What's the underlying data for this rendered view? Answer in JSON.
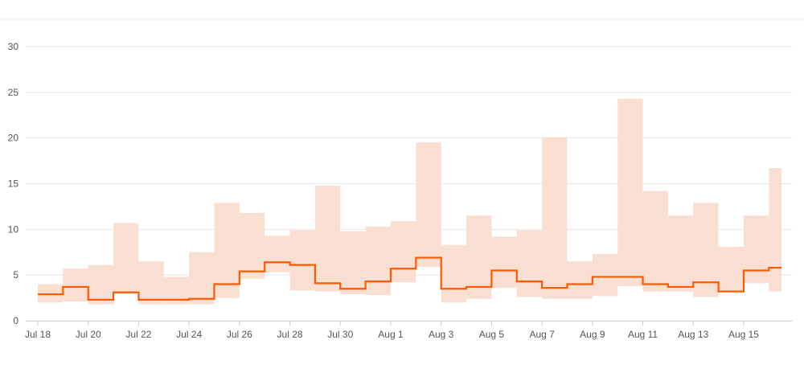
{
  "chart_data": {
    "type": "area",
    "title": "",
    "xlabel": "",
    "ylabel": "",
    "ylim": [
      0,
      30
    ],
    "yticks": [
      0,
      5,
      10,
      15,
      20,
      25,
      30
    ],
    "grid": true,
    "legend": "none",
    "colors": {
      "line": "#ff5a00",
      "band": "#f9dfd1",
      "grid": "#e6e6e6",
      "axis": "#cccccc",
      "text": "#555555"
    },
    "x_tick_labels": [
      "Jul 18",
      "Jul 20",
      "Jul 22",
      "Jul 24",
      "Jul 26",
      "Jul 28",
      "Jul 30",
      "Aug 1",
      "Aug 3",
      "Aug 5",
      "Aug 7",
      "Aug 9",
      "Aug 11",
      "Aug 13",
      "Aug 15"
    ],
    "x": [
      "Jul 18",
      "Jul 19",
      "Jul 20",
      "Jul 21",
      "Jul 22",
      "Jul 23",
      "Jul 24",
      "Jul 25",
      "Jul 26",
      "Jul 27",
      "Jul 28",
      "Jul 29",
      "Jul 30",
      "Jul 31",
      "Aug 1",
      "Aug 2",
      "Aug 3",
      "Aug 4",
      "Aug 5",
      "Aug 6",
      "Aug 7",
      "Aug 8",
      "Aug 9",
      "Aug 10",
      "Aug 11",
      "Aug 12",
      "Aug 13",
      "Aug 14",
      "Aug 15",
      "Aug 16"
    ],
    "series": [
      {
        "values": [
          2.9,
          3.7,
          2.3,
          3.1,
          2.3,
          2.3,
          2.4,
          4.0,
          5.4,
          6.4,
          6.1,
          4.1,
          3.5,
          4.3,
          5.7,
          6.9,
          3.5,
          3.7,
          5.5,
          4.3,
          3.6,
          4.0,
          4.8,
          4.8,
          4.0,
          3.7,
          4.2,
          3.2,
          5.5,
          5.8
        ]
      }
    ],
    "band_upper": [
      4.0,
      5.7,
      6.1,
      10.7,
      6.5,
      4.8,
      7.5,
      12.9,
      11.8,
      9.3,
      9.9,
      14.8,
      9.8,
      10.3,
      10.9,
      19.5,
      8.3,
      11.5,
      9.2,
      9.9,
      20.1,
      6.5,
      7.3,
      24.3,
      14.2,
      11.5,
      12.9,
      8.1,
      11.5,
      16.7
    ],
    "band_lower": [
      2.0,
      2.1,
      1.8,
      3.0,
      1.8,
      1.8,
      1.8,
      2.5,
      4.6,
      5.3,
      3.3,
      3.2,
      2.9,
      2.8,
      4.2,
      5.9,
      2.0,
      2.4,
      3.6,
      2.6,
      2.4,
      2.4,
      2.7,
      3.8,
      3.2,
      3.2,
      2.6,
      3.2,
      4.1,
      3.2
    ]
  }
}
